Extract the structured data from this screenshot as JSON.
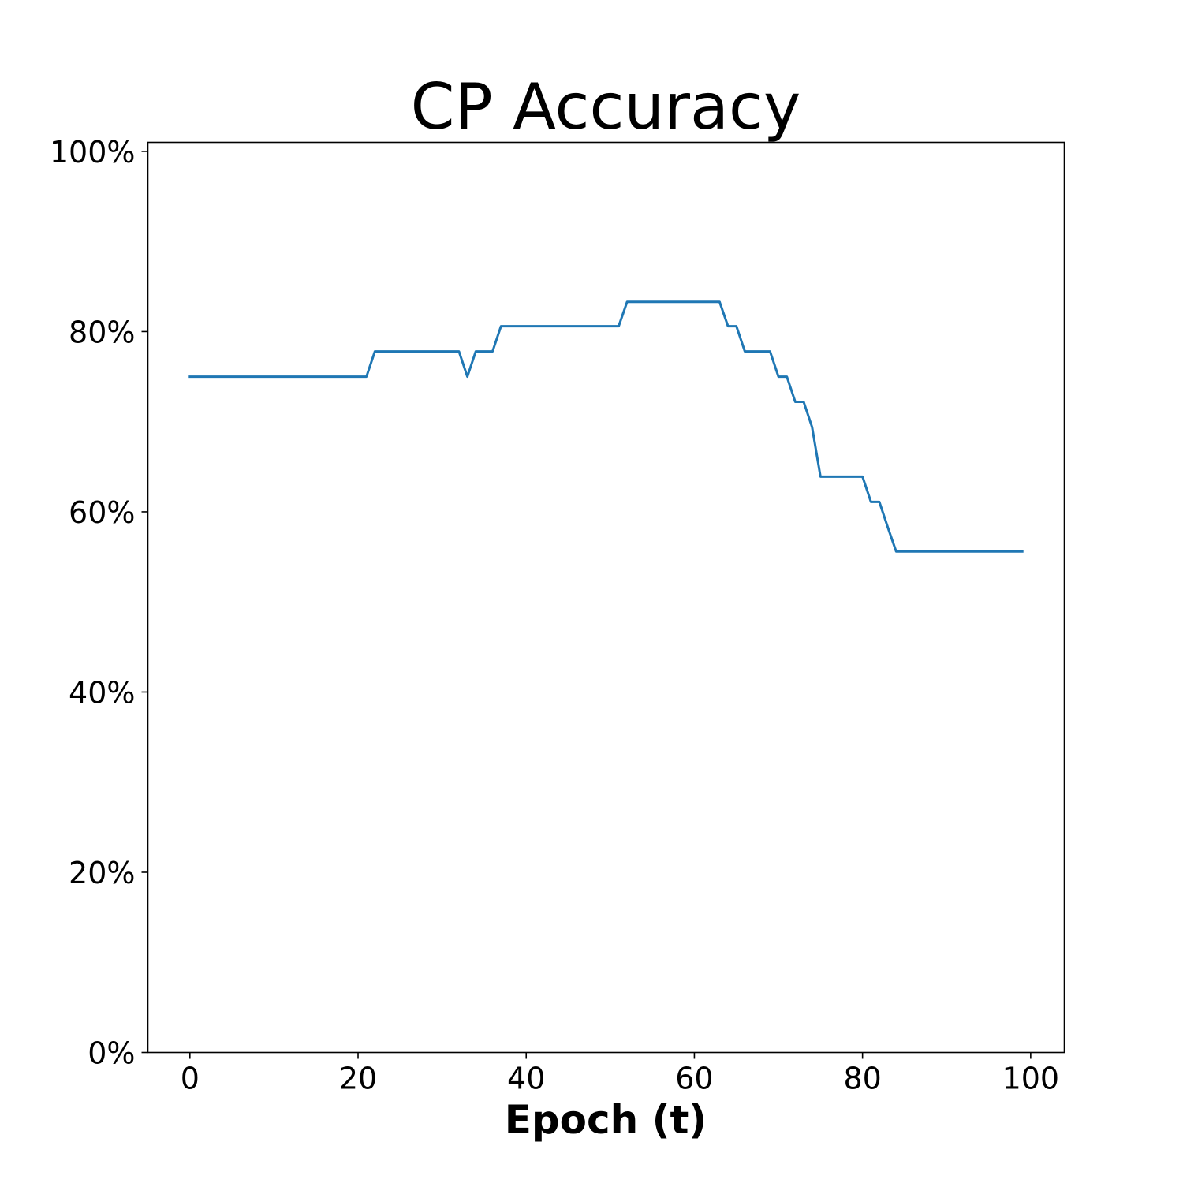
{
  "chart_data": {
    "type": "line",
    "title": "CP Accuracy",
    "xlabel": "Epoch (t)",
    "ylabel": "",
    "xlim": [
      -5,
      104
    ],
    "ylim": [
      0,
      1.01
    ],
    "x_ticks": [
      0,
      20,
      40,
      60,
      80,
      100
    ],
    "x_tick_labels": [
      "0",
      "20",
      "40",
      "60",
      "80",
      "100"
    ],
    "y_ticks": [
      0,
      0.2,
      0.4,
      0.6,
      0.8,
      1.0
    ],
    "y_tick_labels": [
      "0%",
      "20%",
      "40%",
      "60%",
      "80%",
      "100%"
    ],
    "grid": false,
    "legend": "none",
    "series": [
      {
        "color": "#1f77b4",
        "x": [
          0,
          1,
          2,
          3,
          4,
          5,
          6,
          7,
          8,
          9,
          10,
          11,
          12,
          13,
          14,
          15,
          16,
          17,
          18,
          19,
          20,
          21,
          22,
          23,
          24,
          25,
          26,
          27,
          28,
          29,
          30,
          31,
          32,
          33,
          34,
          35,
          36,
          37,
          38,
          39,
          40,
          41,
          42,
          43,
          44,
          45,
          46,
          47,
          48,
          49,
          50,
          51,
          52,
          53,
          54,
          55,
          56,
          57,
          58,
          59,
          60,
          61,
          62,
          63,
          64,
          65,
          66,
          67,
          68,
          69,
          70,
          71,
          72,
          73,
          74,
          75,
          76,
          77,
          78,
          79,
          80,
          81,
          82,
          83,
          84,
          85,
          86,
          87,
          88,
          89,
          90,
          91,
          92,
          93,
          94,
          95,
          96,
          97,
          98,
          99
        ],
        "values": [
          0.75,
          0.75,
          0.75,
          0.75,
          0.75,
          0.75,
          0.75,
          0.75,
          0.75,
          0.75,
          0.75,
          0.75,
          0.75,
          0.75,
          0.75,
          0.75,
          0.75,
          0.75,
          0.75,
          0.75,
          0.75,
          0.75,
          0.778,
          0.778,
          0.778,
          0.778,
          0.778,
          0.778,
          0.778,
          0.778,
          0.778,
          0.778,
          0.778,
          0.75,
          0.778,
          0.778,
          0.778,
          0.806,
          0.806,
          0.806,
          0.806,
          0.806,
          0.806,
          0.806,
          0.806,
          0.806,
          0.806,
          0.806,
          0.806,
          0.806,
          0.806,
          0.806,
          0.833,
          0.833,
          0.833,
          0.833,
          0.833,
          0.833,
          0.833,
          0.833,
          0.833,
          0.833,
          0.833,
          0.833,
          0.806,
          0.806,
          0.778,
          0.778,
          0.778,
          0.778,
          0.75,
          0.75,
          0.722,
          0.722,
          0.694,
          0.639,
          0.639,
          0.639,
          0.639,
          0.639,
          0.639,
          0.611,
          0.611,
          0.583,
          0.556,
          0.556,
          0.556,
          0.556,
          0.556,
          0.556,
          0.556,
          0.556,
          0.556,
          0.556,
          0.556,
          0.556,
          0.556,
          0.556,
          0.556,
          0.556
        ]
      }
    ]
  }
}
